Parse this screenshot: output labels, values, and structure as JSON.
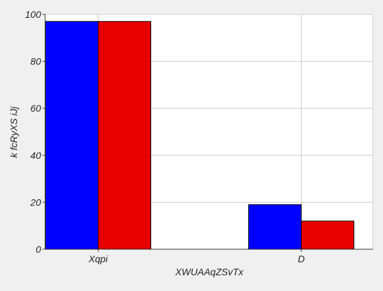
{
  "chart_data": {
    "type": "bar",
    "title": "",
    "xlabel": "XWUAAqZSvTx",
    "ylabel": "k fcRyXS iJj",
    "categories": [
      "Xqpi",
      "D"
    ],
    "series": [
      {
        "color": "#0000ff",
        "values": [
          97,
          19
        ]
      },
      {
        "color": "#e60000",
        "values": [
          97,
          12
        ]
      }
    ],
    "ylim": [
      0,
      100
    ],
    "yticks": [
      0,
      20,
      40,
      60,
      80,
      100
    ],
    "grid": true,
    "legend": "none"
  }
}
